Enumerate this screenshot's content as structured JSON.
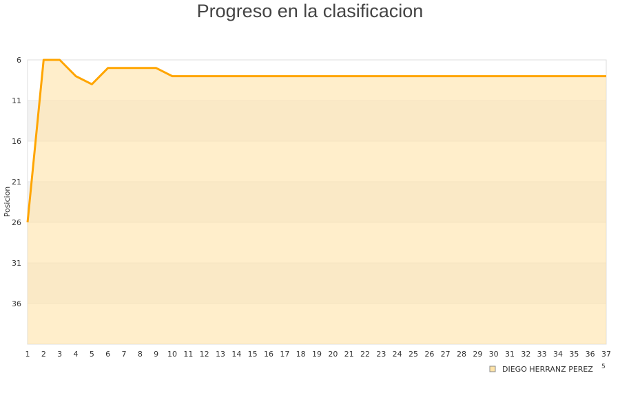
{
  "chart_data": {
    "type": "area",
    "title": "Progreso en la clasificacion",
    "xlabel": "",
    "ylabel": "Posicion",
    "x": [
      1,
      2,
      3,
      4,
      5,
      6,
      7,
      8,
      9,
      10,
      11,
      12,
      13,
      14,
      15,
      16,
      17,
      18,
      19,
      20,
      21,
      22,
      23,
      24,
      25,
      26,
      27,
      28,
      29,
      30,
      31,
      32,
      33,
      34,
      35,
      36,
      37
    ],
    "series": [
      {
        "name": "DIEGO HERRANZ PEREZ",
        "values": [
          26,
          6,
          6,
          8,
          9,
          7,
          7,
          7,
          7,
          8,
          8,
          8,
          8,
          8,
          8,
          8,
          8,
          8,
          8,
          8,
          8,
          8,
          8,
          8,
          8,
          8,
          8,
          8,
          8,
          8,
          8,
          8,
          8,
          8,
          8,
          8,
          8
        ],
        "color": "#ffa500",
        "fill": "#ffe3a8"
      }
    ],
    "yticks": [
      6,
      11,
      16,
      21,
      26,
      31,
      36
    ],
    "ylim": [
      41,
      6
    ],
    "y_inverted": true,
    "xlim": [
      1,
      37
    ],
    "grid": "alternating horizontal bands",
    "band_colors": [
      "#ffffff",
      "#f2f2f2"
    ],
    "legend_position": "bottom-right",
    "stray_label": "5"
  }
}
